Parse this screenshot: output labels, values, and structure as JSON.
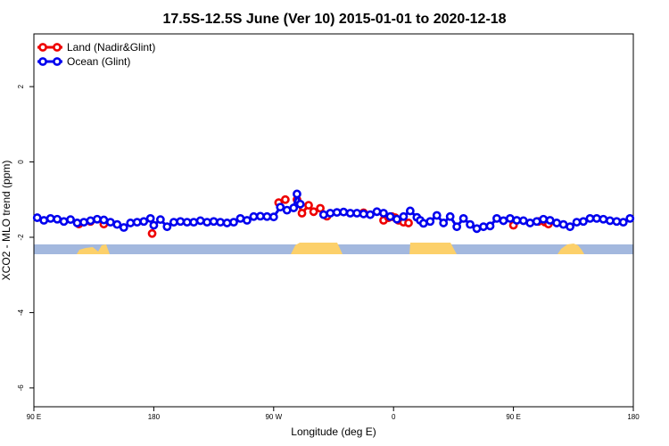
{
  "chart_data": {
    "type": "line",
    "title": "17.5S-12.5S June (Ver 10)   2015-01-01 to 2020-12-18",
    "xlabel": "Longitude (deg E)",
    "ylabel": "XCO2 - MLO trend (ppm)",
    "xlim": [
      90,
      450
    ],
    "ylim": [
      -6.5,
      3.4
    ],
    "x_ticks": [
      {
        "value": 90,
        "label": "90 E"
      },
      {
        "value": 162,
        "label": "180"
      },
      {
        "value": 234,
        "label": "90 W"
      },
      {
        "value": 306,
        "label": "0"
      },
      {
        "value": 378,
        "label": "90 E"
      },
      {
        "value": 450,
        "label": "180"
      }
    ],
    "y_ticks": [
      {
        "value": 2,
        "label": "2"
      },
      {
        "value": 0,
        "label": "0"
      },
      {
        "value": -2,
        "label": "-2"
      },
      {
        "value": -4,
        "label": "-4"
      },
      {
        "value": -6,
        "label": "-6"
      }
    ],
    "legend_position": "top-left",
    "series": [
      {
        "name": "Land (Nadir&Glint)",
        "color": "#ee0000",
        "x": [
          117,
          124,
          132,
          161,
          237,
          241,
          248,
          251,
          255,
          258,
          262,
          266,
          288,
          300,
          303,
          305,
          307,
          309,
          312,
          315,
          378,
          393,
          397,
          399
        ],
        "y": [
          -1.65,
          -1.58,
          -1.65,
          -1.9,
          -1.08,
          -1.0,
          -1.0,
          -1.36,
          -1.15,
          -1.32,
          -1.23,
          -1.44,
          -1.35,
          -1.55,
          -1.48,
          -1.45,
          -1.48,
          -1.55,
          -1.6,
          -1.62,
          -1.68,
          -1.58,
          -1.6,
          -1.65
        ]
      },
      {
        "name": "Ocean (Glint)",
        "color": "#0000ee",
        "x": [
          92,
          96,
          100,
          104,
          108,
          112,
          116,
          120,
          124,
          128,
          132,
          136,
          140,
          144,
          148,
          152,
          156,
          160,
          162,
          166,
          170,
          174,
          178,
          182,
          186,
          190,
          194,
          198,
          202,
          206,
          210,
          214,
          218,
          222,
          226,
          230,
          234,
          238,
          242,
          246,
          248,
          250,
          264,
          268,
          272,
          276,
          280,
          284,
          288,
          292,
          296,
          300,
          304,
          308,
          312,
          316,
          320,
          322,
          324,
          328,
          332,
          336,
          340,
          344,
          348,
          352,
          356,
          360,
          364,
          368,
          372,
          376,
          380,
          384,
          388,
          392,
          396,
          400,
          404,
          408,
          412,
          416,
          420,
          424,
          428,
          432,
          436,
          440,
          444,
          448
        ],
        "y": [
          -1.48,
          -1.55,
          -1.5,
          -1.52,
          -1.58,
          -1.53,
          -1.62,
          -1.6,
          -1.56,
          -1.52,
          -1.54,
          -1.6,
          -1.66,
          -1.74,
          -1.62,
          -1.6,
          -1.58,
          -1.5,
          -1.68,
          -1.53,
          -1.72,
          -1.6,
          -1.58,
          -1.6,
          -1.6,
          -1.56,
          -1.6,
          -1.58,
          -1.6,
          -1.62,
          -1.6,
          -1.5,
          -1.55,
          -1.45,
          -1.44,
          -1.45,
          -1.46,
          -1.2,
          -1.28,
          -1.22,
          -0.85,
          -1.12,
          -1.4,
          -1.36,
          -1.34,
          -1.33,
          -1.36,
          -1.36,
          -1.38,
          -1.4,
          -1.32,
          -1.36,
          -1.45,
          -1.52,
          -1.45,
          -1.3,
          -1.47,
          -1.55,
          -1.63,
          -1.58,
          -1.42,
          -1.62,
          -1.45,
          -1.72,
          -1.5,
          -1.66,
          -1.77,
          -1.72,
          -1.7,
          -1.5,
          -1.56,
          -1.5,
          -1.55,
          -1.56,
          -1.62,
          -1.58,
          -1.52,
          -1.55,
          -1.62,
          -1.66,
          -1.72,
          -1.6,
          -1.58,
          -1.5,
          -1.5,
          -1.52,
          -1.56,
          -1.58,
          -1.6,
          -1.5
        ]
      }
    ],
    "land_mask_colors": {
      "ocean": "#a3b8de",
      "land": "#fcd06a"
    }
  }
}
